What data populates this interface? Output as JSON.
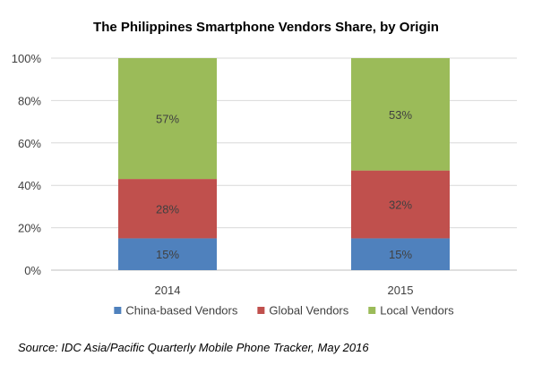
{
  "chart_data": {
    "type": "bar",
    "stacked": true,
    "title": "The Philippines Smartphone Vendors Share, by Origin",
    "categories": [
      "2014",
      "2015"
    ],
    "series": [
      {
        "name": "China-based Vendors",
        "values": [
          15,
          15
        ],
        "labels": [
          "15%",
          "15%"
        ],
        "color": "#4f81bd"
      },
      {
        "name": "Global Vendors",
        "values": [
          28,
          32
        ],
        "labels": [
          "28%",
          "32%"
        ],
        "color": "#c0504d"
      },
      {
        "name": "Local Vendors",
        "values": [
          57,
          53
        ],
        "labels": [
          "57%",
          "53%"
        ],
        "color": "#9bbb59"
      }
    ],
    "ylim": [
      0,
      100
    ],
    "yticks": [
      0,
      20,
      40,
      60,
      80,
      100
    ],
    "ytick_labels": [
      "0%",
      "20%",
      "40%",
      "60%",
      "80%",
      "100%"
    ],
    "grid": true,
    "legend": "bottom",
    "source": "Source: IDC Asia/Pacific Quarterly Mobile Phone Tracker, May 2016"
  }
}
